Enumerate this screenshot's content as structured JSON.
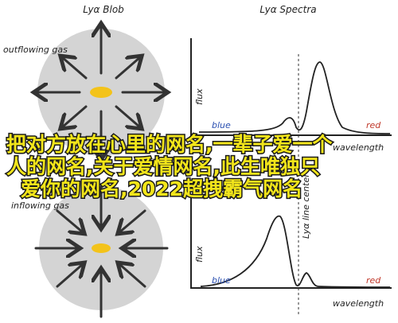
{
  "left_panel": {
    "title": "Lyα Blob",
    "top_label": "outflowing gas",
    "bottom_label": "inflowing gas"
  },
  "right_panel": {
    "title": "Lyα Spectra",
    "y_label": "flux",
    "x_label": "wavelength",
    "blue_label": "blue",
    "red_label": "red",
    "line_center_label": "Lyα line center"
  },
  "overlay_caption": {
    "lines": [
      "把对方放在心里的网名,一辈子爱一个",
      "人的网名,关于爱情网名,此生唯独只",
      "爱你的网名,2022超拽霸气网名"
    ]
  }
}
